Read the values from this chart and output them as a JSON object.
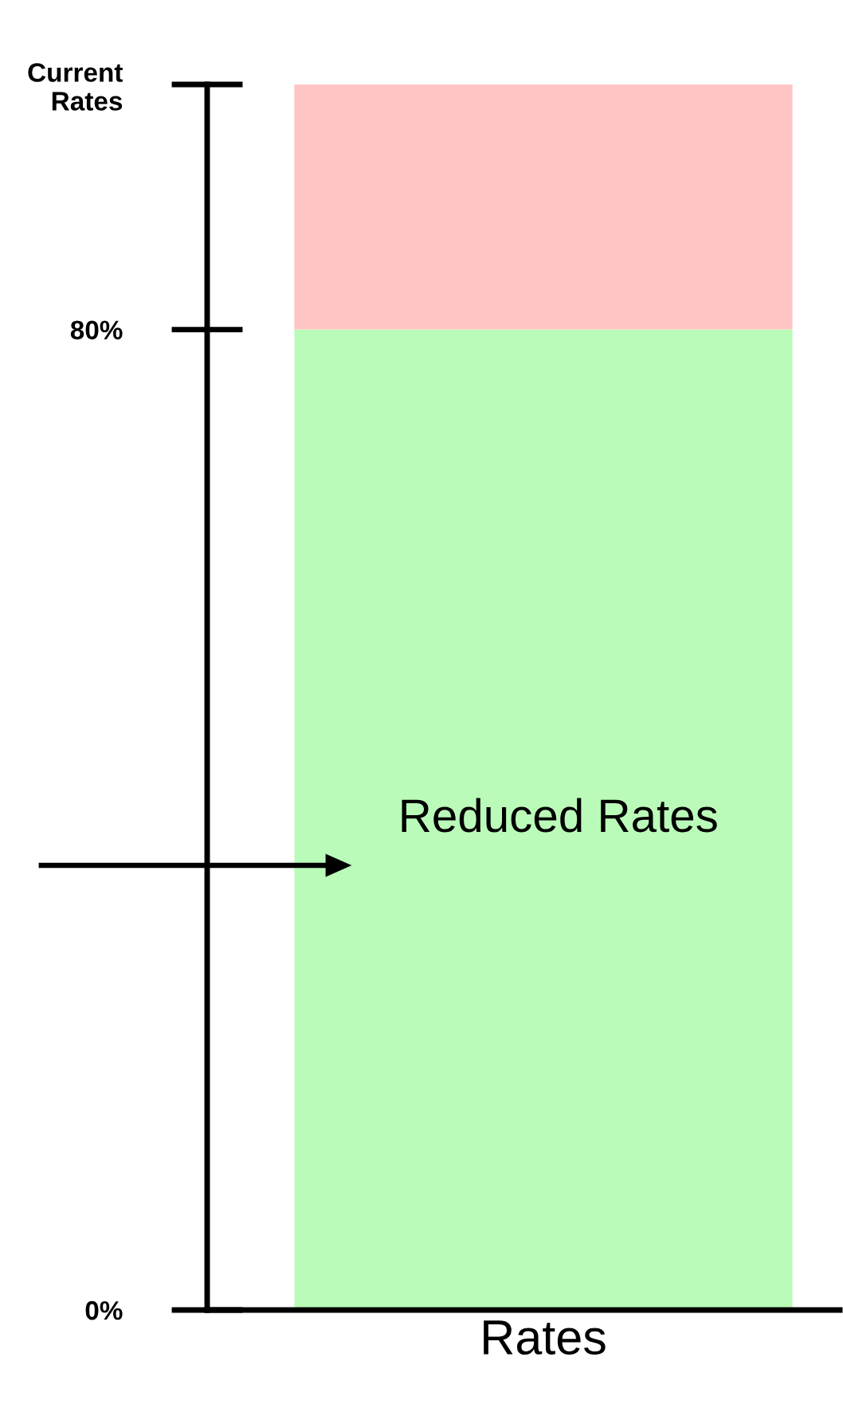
{
  "chart_data": {
    "type": "bar",
    "stacked": true,
    "categories": [
      "Rates"
    ],
    "series": [
      {
        "name": "Reduced Rates",
        "color": "#bbfbb9",
        "values": [
          80
        ]
      },
      {
        "color": "#fec5c4",
        "values": [
          20
        ]
      }
    ],
    "ylim": [
      0,
      100
    ],
    "yticks": [
      {
        "value": 100,
        "label": "Current\nRates"
      },
      {
        "value": 80,
        "label": "80%"
      },
      {
        "value": 0,
        "label": "0%"
      }
    ]
  }
}
